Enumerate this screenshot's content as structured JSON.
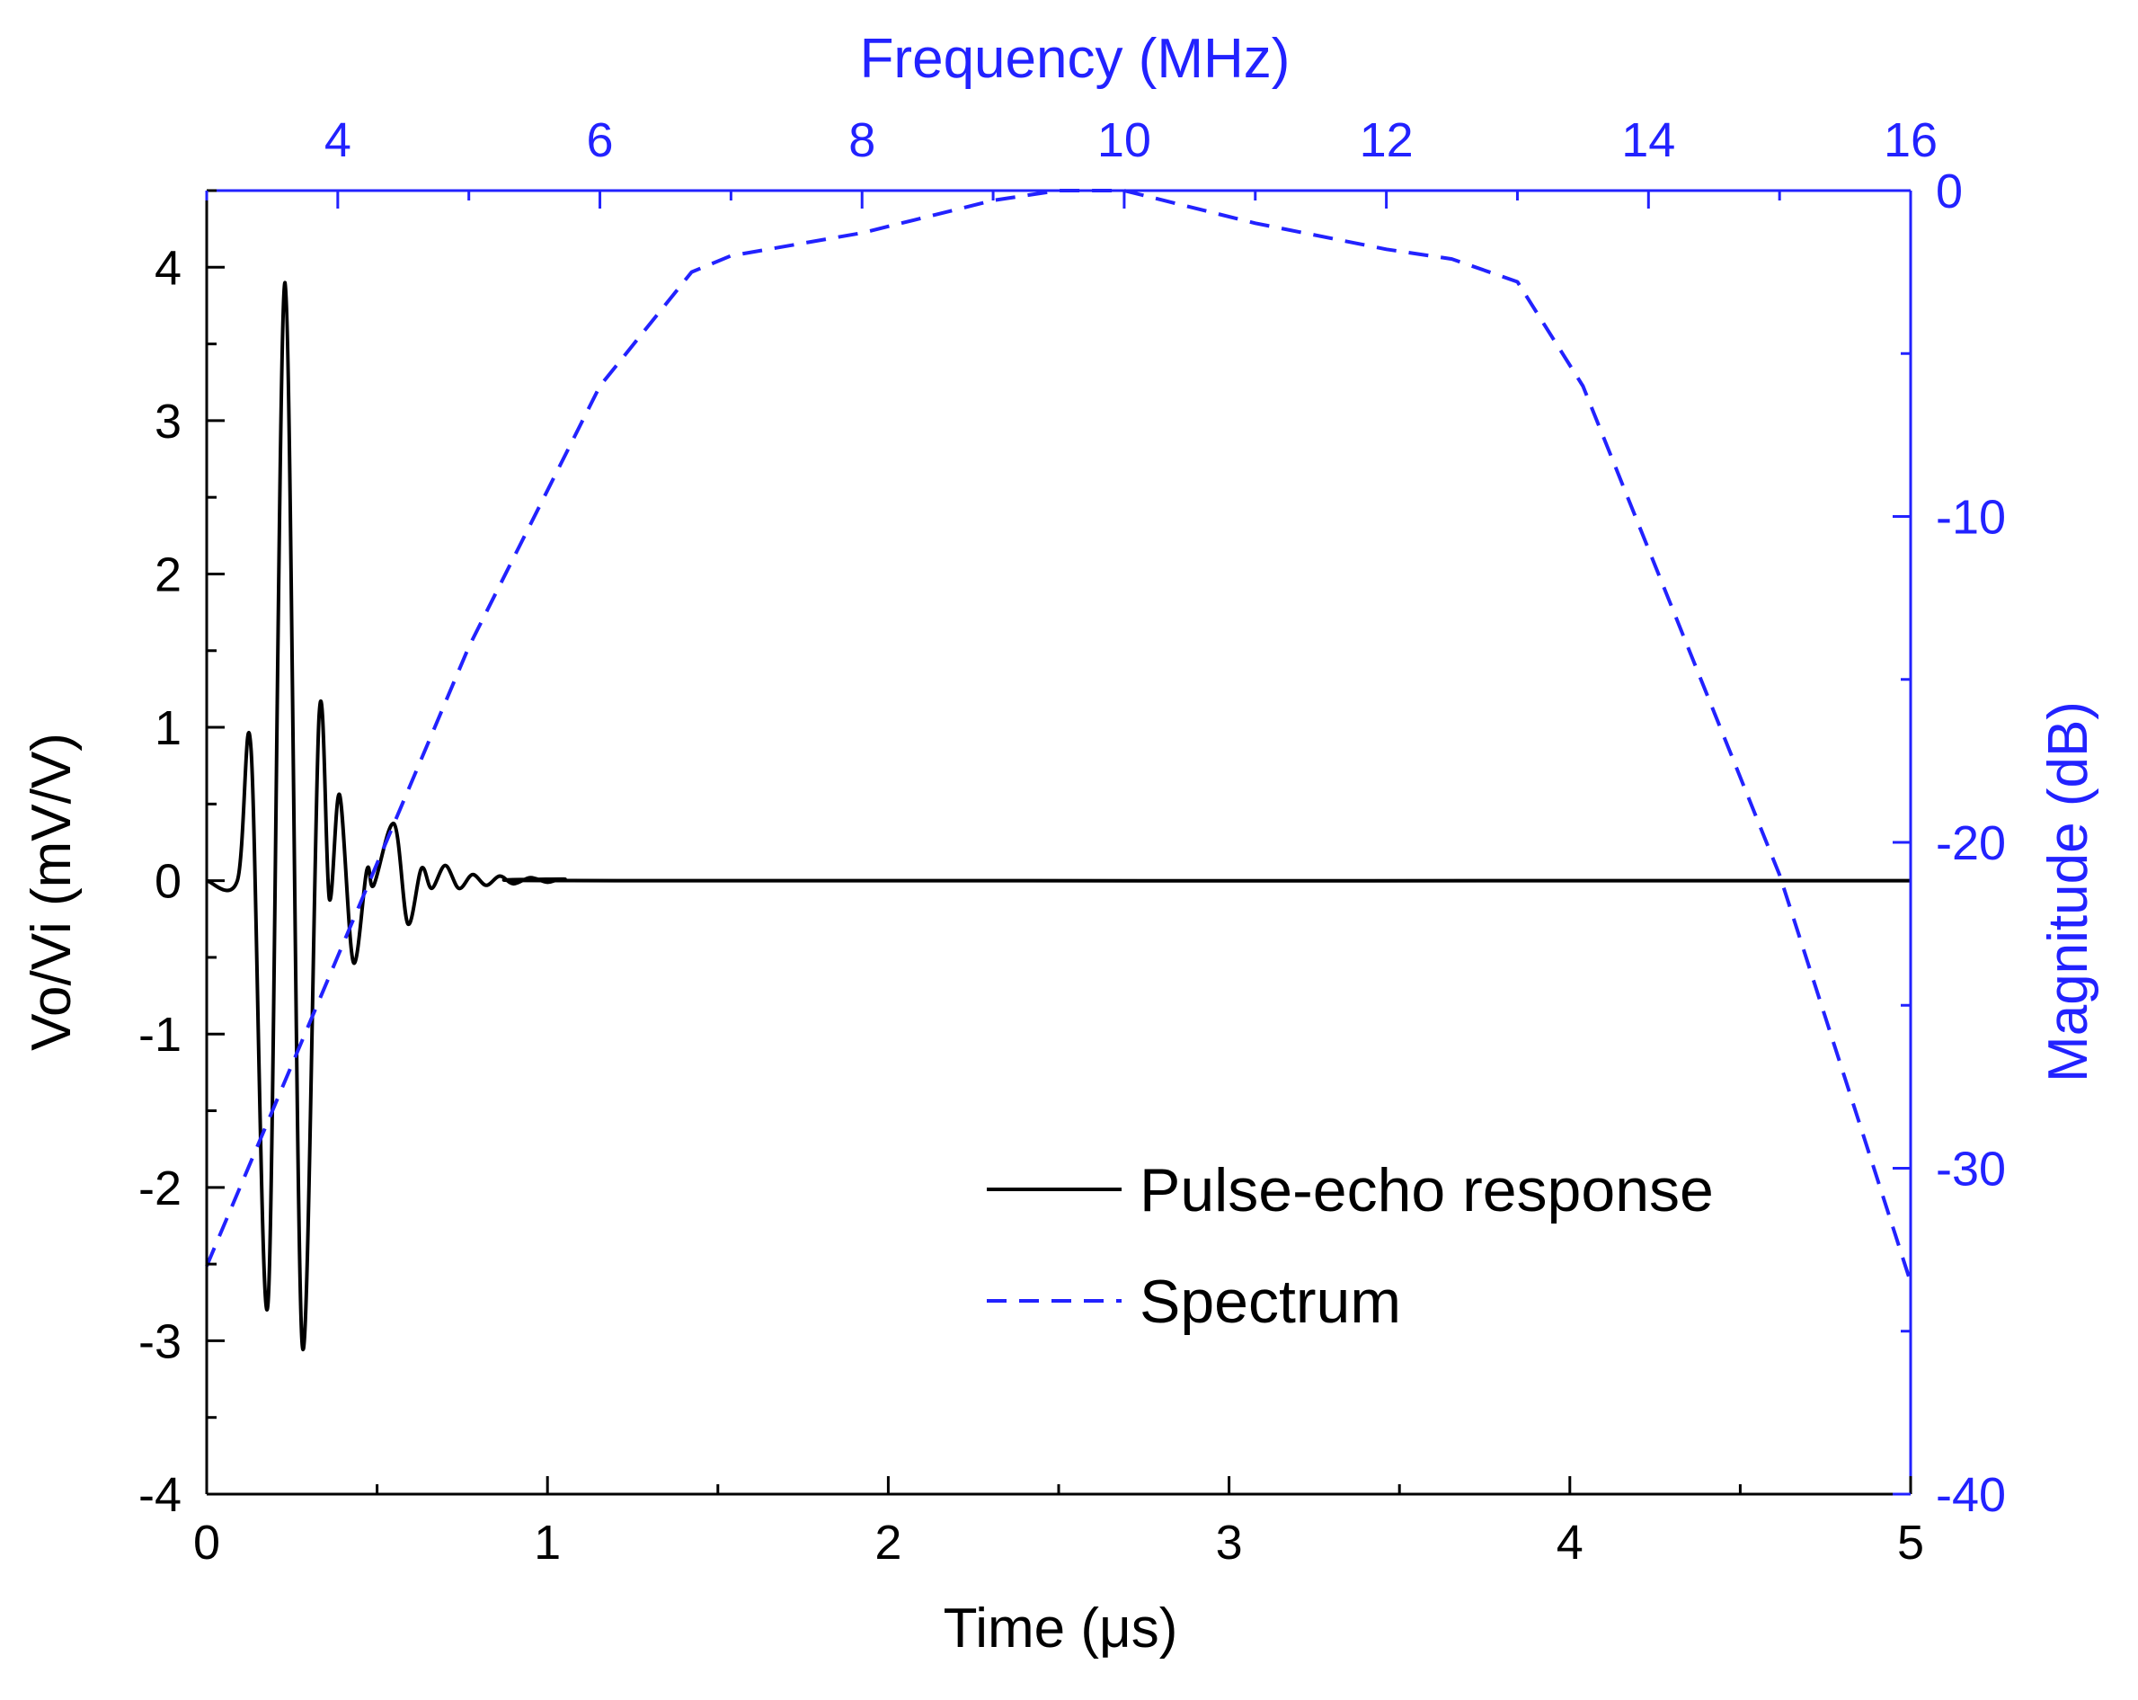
{
  "chart_data": {
    "type": "line",
    "title": "",
    "xlabel": "Time (μs)",
    "ylabel": "Vo/Vi (mV/V)",
    "x2label": "Frequency (MHz)",
    "y2label": "Magnitude (dB)",
    "xlim": [
      0,
      5
    ],
    "ylim": [
      -4,
      4.5
    ],
    "x2lim": [
      3,
      16
    ],
    "y2lim": [
      -40,
      0
    ],
    "x_ticks": [
      "0",
      "1",
      "2",
      "3",
      "4",
      "5"
    ],
    "y_ticks": [
      "-4",
      "-3",
      "-2",
      "-1",
      "0",
      "1",
      "2",
      "3",
      "4"
    ],
    "x2_ticks": [
      "4",
      "6",
      "8",
      "10",
      "12",
      "14",
      "16"
    ],
    "y2_ticks": [
      "-40",
      "-30",
      "-20",
      "-10",
      "0"
    ],
    "grid": false,
    "legend_position": "bottom-right",
    "colors": {
      "pulse": "#000000",
      "spectrum": "#2222ff",
      "right_axes": "#2222ff"
    },
    "series": [
      {
        "name": "Pulse-echo response",
        "axis": "time",
        "line_style": "solid",
        "points": [
          [
            0.0,
            0.0
          ],
          [
            0.09,
            0.0
          ],
          [
            0.13,
            0.86
          ],
          [
            0.18,
            -2.75
          ],
          [
            0.23,
            3.9
          ],
          [
            0.28,
            -3.02
          ],
          [
            0.33,
            1.08
          ],
          [
            0.36,
            -0.12
          ],
          [
            0.39,
            0.56
          ],
          [
            0.43,
            -0.53
          ],
          [
            0.47,
            0.07
          ],
          [
            0.49,
            -0.03
          ],
          [
            0.55,
            0.37
          ],
          [
            0.59,
            -0.28
          ],
          [
            0.63,
            0.08
          ],
          [
            0.66,
            -0.05
          ],
          [
            0.7,
            0.1
          ],
          [
            0.74,
            -0.05
          ],
          [
            0.78,
            0.04
          ],
          [
            0.82,
            -0.03
          ],
          [
            0.86,
            0.03
          ],
          [
            0.9,
            -0.02
          ],
          [
            0.95,
            0.02
          ],
          [
            1.0,
            -0.01
          ],
          [
            1.05,
            0.01
          ],
          [
            1.2,
            0.0
          ],
          [
            5.0,
            0.0
          ]
        ]
      },
      {
        "name": "Spectrum",
        "axis": "frequency",
        "line_style": "dashed",
        "points": [
          [
            3.0,
            -33.0
          ],
          [
            4.0,
            -23.5
          ],
          [
            5.0,
            -14.0
          ],
          [
            6.0,
            -6.0
          ],
          [
            6.7,
            -2.5
          ],
          [
            7.0,
            -2.0
          ],
          [
            8.0,
            -1.3
          ],
          [
            9.0,
            -0.3
          ],
          [
            9.5,
            0.0
          ],
          [
            10.0,
            0.0
          ],
          [
            11.0,
            -1.0
          ],
          [
            12.0,
            -1.8
          ],
          [
            12.5,
            -2.1
          ],
          [
            13.0,
            -2.8
          ],
          [
            13.5,
            -6.0
          ],
          [
            14.0,
            -11.0
          ],
          [
            15.0,
            -21.0
          ],
          [
            16.0,
            -33.5
          ]
        ]
      }
    ]
  }
}
